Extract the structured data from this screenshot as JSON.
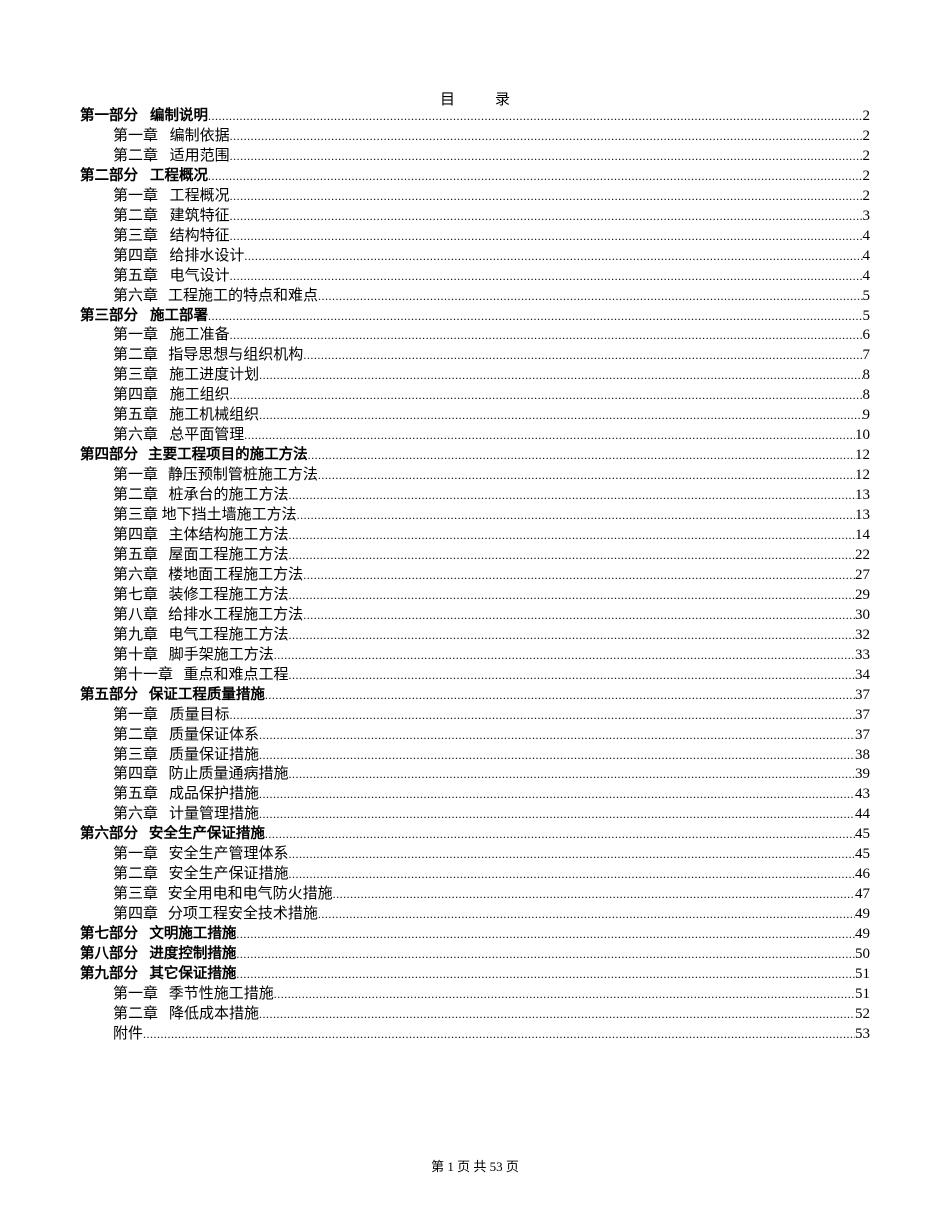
{
  "title": [
    "目",
    "录"
  ],
  "entries": [
    {
      "level": "part",
      "num": "第一部分",
      "text": "编制说明",
      "page": "2"
    },
    {
      "level": "chap",
      "num": "第一章",
      "text": "编制依据",
      "page": "2"
    },
    {
      "level": "chap",
      "num": "第二章",
      "text": "适用范围",
      "page": "2"
    },
    {
      "level": "part",
      "num": "第二部分",
      "text": "工程概况",
      "page": "2"
    },
    {
      "level": "chap",
      "num": "第一章",
      "text": "工程概况",
      "page": "2"
    },
    {
      "level": "chap",
      "num": "第二章",
      "text": "建筑特征",
      "page": "3"
    },
    {
      "level": "chap",
      "num": "第三章",
      "text": "结构特征",
      "page": "4"
    },
    {
      "level": "chap",
      "num": "第四章",
      "text": "给排水设计",
      "page": "4"
    },
    {
      "level": "chap",
      "num": "第五章",
      "text": "电气设计",
      "page": "4"
    },
    {
      "level": "chap",
      "num": "第六章",
      "text": "工程施工的特点和难点",
      "page": "5"
    },
    {
      "level": "part",
      "num": "第三部分",
      "text": "施工部署",
      "page": "5"
    },
    {
      "level": "chap",
      "num": "第一章",
      "text": "施工准备",
      "page": "6"
    },
    {
      "level": "chap",
      "num": "第二章",
      "text": "指导思想与组织机构",
      "page": "7"
    },
    {
      "level": "chap",
      "num": "第三章",
      "text": "施工进度计划",
      "page": "8"
    },
    {
      "level": "chap",
      "num": "第四章",
      "text": "施工组织",
      "page": "8"
    },
    {
      "level": "chap",
      "num": "第五章",
      "text": "施工机械组织",
      "page": "9"
    },
    {
      "level": "chap",
      "num": "第六章",
      "text": "总平面管理",
      "page": "10"
    },
    {
      "level": "part",
      "num": "第四部分",
      "text": "主要工程项目的施工方法",
      "page": "12"
    },
    {
      "level": "chap",
      "num": "第一章",
      "text": "静压预制管桩施工方法",
      "page": "12"
    },
    {
      "level": "chap",
      "num": "第二章",
      "text": "桩承台的施工方法",
      "page": "13"
    },
    {
      "level": "chap",
      "num": "第三章",
      "text": "地下挡土墙施工方法",
      "page": "13",
      "tight": true
    },
    {
      "level": "chap",
      "num": "第四章",
      "text": "主体结构施工方法",
      "page": "14"
    },
    {
      "level": "chap",
      "num": "第五章",
      "text": "屋面工程施工方法",
      "page": "22"
    },
    {
      "level": "chap",
      "num": "第六章",
      "text": "楼地面工程施工方法",
      "page": "27"
    },
    {
      "level": "chap",
      "num": "第七章",
      "text": "装修工程施工方法",
      "page": "29"
    },
    {
      "level": "chap",
      "num": "第八章",
      "text": "给排水工程施工方法",
      "page": "30"
    },
    {
      "level": "chap",
      "num": "第九章",
      "text": "电气工程施工方法",
      "page": "32"
    },
    {
      "level": "chap",
      "num": "第十章",
      "text": "脚手架施工方法",
      "page": "33"
    },
    {
      "level": "chap",
      "num": "第十一章",
      "text": "重点和难点工程",
      "page": "34"
    },
    {
      "level": "part",
      "num": "第五部分",
      "text": "保证工程质量措施",
      "page": "37"
    },
    {
      "level": "chap",
      "num": "第一章",
      "text": "质量目标",
      "page": "37"
    },
    {
      "level": "chap",
      "num": "第二章",
      "text": "质量保证体系",
      "page": "37"
    },
    {
      "level": "chap",
      "num": "第三章",
      "text": "质量保证措施",
      "page": "38"
    },
    {
      "level": "chap",
      "num": "第四章",
      "text": "防止质量通病措施",
      "page": "39"
    },
    {
      "level": "chap",
      "num": "第五章",
      "text": "成品保护措施",
      "page": "43"
    },
    {
      "level": "chap",
      "num": "第六章",
      "text": "计量管理措施",
      "page": "44"
    },
    {
      "level": "part",
      "num": "第六部分",
      "text": "安全生产保证措施",
      "page": "45"
    },
    {
      "level": "chap",
      "num": "第一章",
      "text": "安全生产管理体系",
      "page": "45"
    },
    {
      "level": "chap",
      "num": "第二章",
      "text": "安全生产保证措施",
      "page": "46"
    },
    {
      "level": "chap",
      "num": "第三章",
      "text": "安全用电和电气防火措施",
      "page": "47"
    },
    {
      "level": "chap",
      "num": "第四章",
      "text": "分项工程安全技术措施",
      "page": "49"
    },
    {
      "level": "part",
      "num": "第七部分",
      "text": "文明施工措施",
      "page": "49"
    },
    {
      "level": "part",
      "num": "第八部分",
      "text": "进度控制措施",
      "page": "50"
    },
    {
      "level": "part",
      "num": "第九部分",
      "text": "其它保证措施",
      "page": "51"
    },
    {
      "level": "chap",
      "num": "第一章",
      "text": "季节性施工措施",
      "page": "51"
    },
    {
      "level": "chap",
      "num": "第二章",
      "text": "降低成本措施",
      "page": "52"
    },
    {
      "level": "chap",
      "num": "",
      "text": "附件",
      "page": "53"
    }
  ],
  "footer": "第 1 页 共 53 页"
}
